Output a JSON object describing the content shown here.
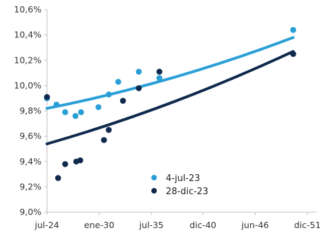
{
  "chart_data": {
    "type": "scatter",
    "x_tick_labels": [
      "jul-24",
      "ene-30",
      "jul-35",
      "dic-40",
      "jun-46",
      "dic-51"
    ],
    "x_tick_dates": [
      "2024-07-01",
      "2030-01-01",
      "2035-07-01",
      "2040-12-01",
      "2046-06-01",
      "2051-12-01"
    ],
    "xlim": [
      "2024-07-01",
      "2051-12-01"
    ],
    "y_tick_labels": [
      "9,0%",
      "9,2%",
      "9,4%",
      "9,6%",
      "9,8%",
      "10,0%",
      "10,2%",
      "10,4%",
      "10,6%"
    ],
    "ylim": [
      9.0,
      10.6
    ],
    "grid": false,
    "legend_position": "bottom-center",
    "series": [
      {
        "name": "4-jul-23",
        "color": "#2a9fd6",
        "points": [
          {
            "x": "2024-07-01",
            "y": 9.9
          },
          {
            "x": "2025-07-01",
            "y": 9.85
          },
          {
            "x": "2026-06-01",
            "y": 9.79
          },
          {
            "x": "2027-07-01",
            "y": 9.76
          },
          {
            "x": "2028-02-01",
            "y": 9.79
          },
          {
            "x": "2029-12-01",
            "y": 9.83
          },
          {
            "x": "2031-01-01",
            "y": 9.93
          },
          {
            "x": "2032-01-01",
            "y": 10.03
          },
          {
            "x": "2034-03-01",
            "y": 10.11
          },
          {
            "x": "2036-05-01",
            "y": 10.06
          },
          {
            "x": "2050-06-01",
            "y": 10.44
          }
        ],
        "trend": {
          "x_start": "2024-07-01",
          "y_start": 9.82,
          "x_end": "2050-06-01",
          "y_end": 10.38
        }
      },
      {
        "name": "28-dic-23",
        "color": "#0f2a4d",
        "points": [
          {
            "x": "2024-07-01",
            "y": 9.91
          },
          {
            "x": "2025-09-01",
            "y": 9.27
          },
          {
            "x": "2026-06-01",
            "y": 9.38
          },
          {
            "x": "2027-08-01",
            "y": 9.4
          },
          {
            "x": "2028-01-01",
            "y": 9.41
          },
          {
            "x": "2030-07-01",
            "y": 9.57
          },
          {
            "x": "2031-01-01",
            "y": 9.65
          },
          {
            "x": "2032-07-01",
            "y": 9.88
          },
          {
            "x": "2034-03-01",
            "y": 9.98
          },
          {
            "x": "2036-05-01",
            "y": 10.11
          },
          {
            "x": "2050-06-01",
            "y": 10.25
          }
        ],
        "trend": {
          "x_start": "2024-07-01",
          "y_start": 9.54,
          "x_end": "2050-06-01",
          "y_end": 10.27
        }
      }
    ]
  }
}
